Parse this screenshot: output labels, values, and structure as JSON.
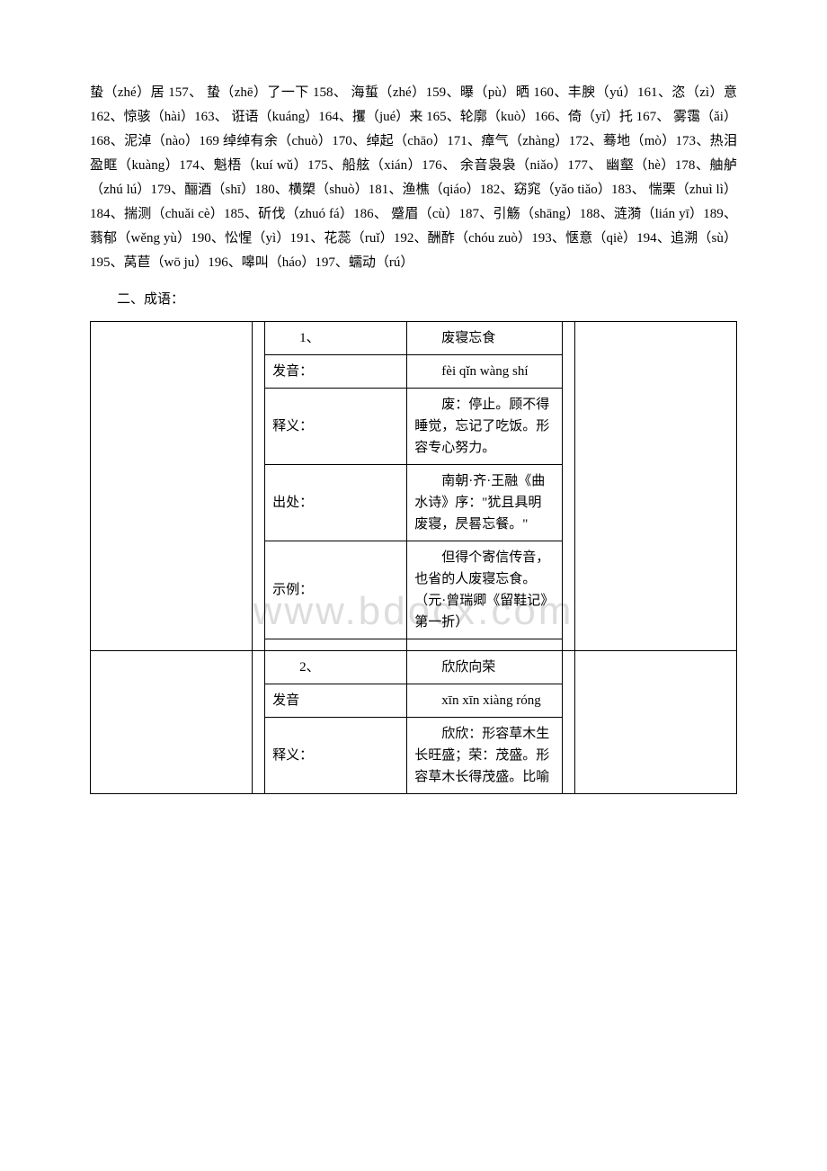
{
  "paragraph": "蛰（zhé）居 157、 蛰（zhē）了一下 158、 海蜇（zhé）159、曝（pù）晒 160、丰腴（yú）161、恣（zì）意 162、惊骇（hài）163、 诳语（kuáng）164、攫（jué）来 165、轮廓（kuò）166、倚（yǐ）托 167、 雾霭（ǎi）168、泥淖（nào）169 绰绰有余（chuò）170、绰起（chāo）171、瘴气（zhàng）172、蓦地（mò）173、热泪盈眶（kuàng）174、魁梧（kuí wǔ）175、船舷（xián）176、 余音袅袅（niǎo）177、 幽壑（hè）178、舳舻（zhú lú）179、酾酒（shī）180、横槊（shuò）181、渔樵（qiáo）182、窈窕（yǎo tiǎo）183、 惴栗（zhuì lì）184、揣测（chuǎi cè）185、斫伐（zhuó fá）186、 蹙眉（cù）187、引觞（shāng）188、涟漪（lián yī）189、蓊郁（wěng yù）190、忪惺（yì）191、花蕊（ruǐ）192、酬酢（chóu zuò）193、惬意（qiè）194、追溯（sù）195、莴苣（wō ju）196、嗥叫（háo）197、蠕动（rú）",
  "sectionTitle": "二、成语：",
  "watermark": "www.bdocx.com",
  "idioms": [
    {
      "num": "1、",
      "name": "废寝忘食",
      "rows": [
        {
          "label": "发音：",
          "value": "fèi qǐn wàng shí"
        },
        {
          "label": "释义：",
          "value": "废：停止。顾不得睡觉，忘记了吃饭。形容专心努力。"
        },
        {
          "label": "出处：",
          "value": "南朝·齐·王融《曲水诗》序：\"犹且具明废寝，昃晷忘餐。\""
        },
        {
          "label": "示例：",
          "value": "但得个寄信传音，也省的人废寝忘食。（元·曾瑞卿《留鞋记》第一折）"
        }
      ]
    },
    {
      "num": "2、",
      "name": "欣欣向荣",
      "rows": [
        {
          "label": "发音",
          "value": "xīn xīn xiàng róng"
        },
        {
          "label": "释义：",
          "value": "欣欣：形容草木生长旺盛；荣：茂盛。形容草木长得茂盛。比喻"
        }
      ]
    }
  ]
}
